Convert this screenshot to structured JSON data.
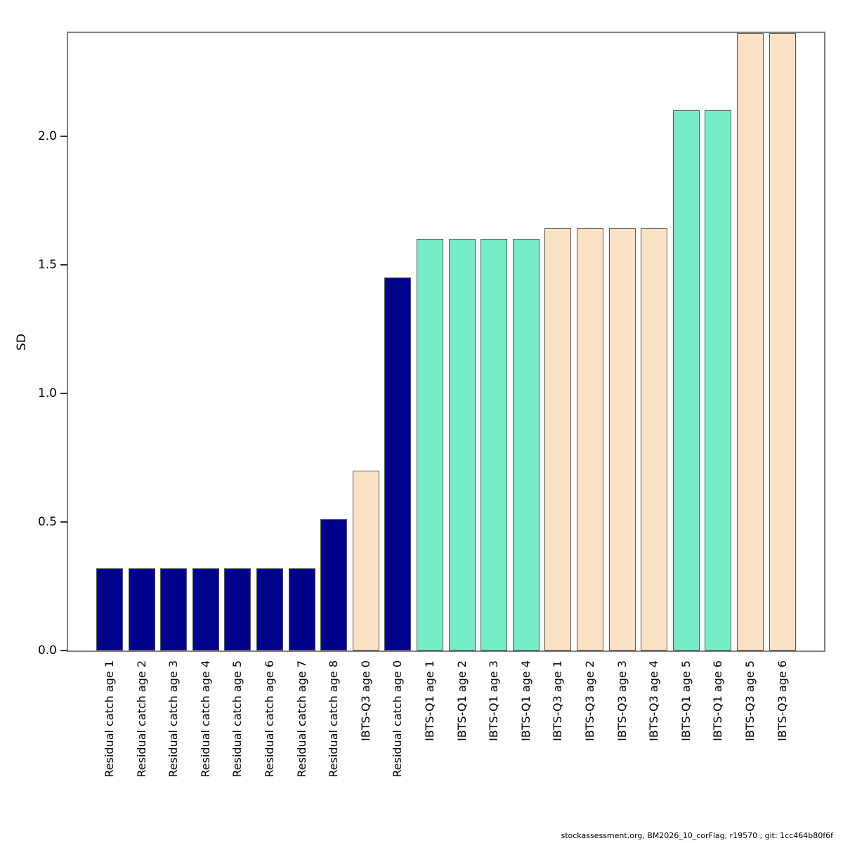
{
  "chart_data": {
    "type": "bar",
    "title": "",
    "xlabel": "",
    "ylabel": "SD",
    "ylim": [
      0,
      2.4
    ],
    "grid": false,
    "legend": "none",
    "ytick_values": [
      0.0,
      0.5,
      1.0,
      1.5,
      2.0
    ],
    "ytick_labels": [
      "0.0",
      "0.5",
      "1.0",
      "1.5",
      "2.0"
    ],
    "categories": [
      "Residual catch age 1",
      "Residual catch age 2",
      "Residual catch age 3",
      "Residual catch age 4",
      "Residual catch age 5",
      "Residual catch age 6",
      "Residual catch age 7",
      "Residual catch age 8",
      "IBTS-Q3 age 0",
      "Residual catch age 0",
      "IBTS-Q1 age 1",
      "IBTS-Q1 age 2",
      "IBTS-Q1 age 3",
      "IBTS-Q1 age 4",
      "IBTS-Q3 age 1",
      "IBTS-Q3 age 2",
      "IBTS-Q3 age 3",
      "IBTS-Q3 age 4",
      "IBTS-Q1 age 5",
      "IBTS-Q1 age 6",
      "IBTS-Q3 age 5",
      "IBTS-Q3 age 6"
    ],
    "values": [
      0.32,
      0.32,
      0.32,
      0.32,
      0.32,
      0.32,
      0.32,
      0.51,
      0.7,
      1.45,
      1.6,
      1.6,
      1.6,
      1.6,
      1.64,
      1.64,
      1.64,
      1.64,
      2.1,
      2.1,
      2.4,
      2.4
    ],
    "bar_groups": [
      "catch",
      "catch",
      "catch",
      "catch",
      "catch",
      "catch",
      "catch",
      "catch",
      "ibts_q3",
      "catch",
      "ibts_q1",
      "ibts_q1",
      "ibts_q1",
      "ibts_q1",
      "ibts_q3",
      "ibts_q3",
      "ibts_q3",
      "ibts_q3",
      "ibts_q1",
      "ibts_q1",
      "ibts_q3",
      "ibts_q3"
    ],
    "palette": {
      "catch": "#00008B",
      "ibts_q1": "#76EBC7",
      "ibts_q3": "#FCE2C5"
    },
    "bar_border_color": "#545454",
    "box_border_color": "#7f7f7f"
  },
  "footer": {
    "text": "stockassessment.org, BM2026_10_corFlag, r19570 , git: 1cc464b80f6f"
  }
}
